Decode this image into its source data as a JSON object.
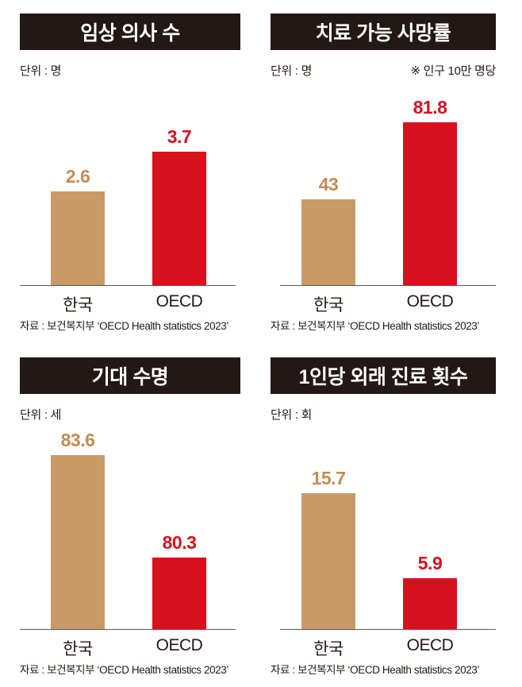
{
  "colors": {
    "title_box_bg": "#231815",
    "title_text": "#ffffff",
    "axis_line": "#595757",
    "text_dark": "#231815",
    "series": [
      {
        "name": "한국",
        "bar": "#C99A65",
        "label": "#C18C54"
      },
      {
        "name": "OECD",
        "bar": "#D5121E",
        "label": "#D5121E"
      }
    ]
  },
  "chart_data": [
    {
      "type": "bar",
      "title": "임상 의사 수",
      "unit_label": "단위 : 명",
      "note": "",
      "categories": [
        "한국",
        "OECD"
      ],
      "values": [
        2.6,
        3.7
      ],
      "value_labels": [
        "2.6",
        "3.7"
      ],
      "ylim": [
        0,
        5.5
      ],
      "grid": false,
      "legend": "none",
      "source": "자료 : 보건복지부 ‘OECD Health statistics 2023’"
    },
    {
      "type": "bar",
      "title": "치료 가능 사망률",
      "unit_label": "단위 : 명",
      "note": "※ 인구 10만 명당",
      "categories": [
        "한국",
        "OECD"
      ],
      "values": [
        43,
        81.8
      ],
      "value_labels": [
        "43",
        "81.8"
      ],
      "ylim": [
        0,
        100
      ],
      "grid": false,
      "legend": "none",
      "source": "자료 : 보건복지부 ‘OECD Health statistics 2023’"
    },
    {
      "type": "bar",
      "title": "기대 수명",
      "unit_label": "단위 : 세",
      "note": "",
      "categories": [
        "한국",
        "OECD"
      ],
      "values": [
        83.6,
        80.3
      ],
      "value_labels": [
        "83.6",
        "80.3"
      ],
      "ylim": [
        78,
        84.4
      ],
      "grid": false,
      "legend": "none",
      "source": "자료 : 보건복지부 ‘OECD Health statistics 2023’"
    },
    {
      "type": "bar",
      "title": "1인당 외래 진료 횟수",
      "unit_label": "단위 : 회",
      "note": "",
      "categories": [
        "한국",
        "OECD"
      ],
      "values": [
        15.7,
        5.9
      ],
      "value_labels": [
        "15.7",
        "5.9"
      ],
      "ylim": [
        0,
        23
      ],
      "grid": false,
      "legend": "none",
      "source": "자료 : 보건복지부 ‘OECD Health statistics 2023’"
    }
  ]
}
